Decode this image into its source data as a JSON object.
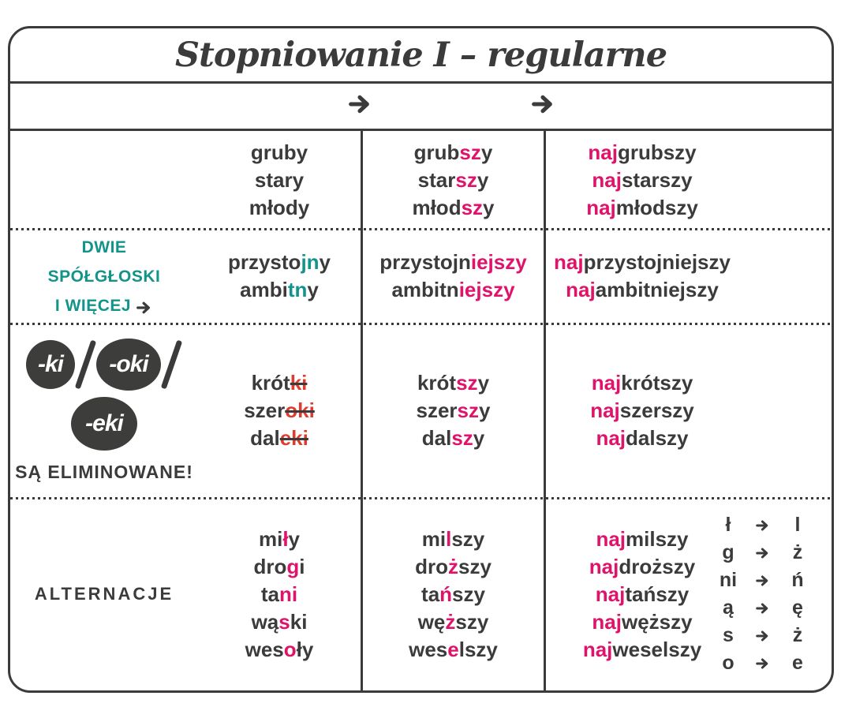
{
  "title": "Stopniowanie I – regularne",
  "colors": {
    "dark": "#3b3b3b",
    "pink": "#e0136b",
    "teal": "#13948b",
    "red": "#e03c2d",
    "circle_bg": "#3d3d3c"
  },
  "arrow_row": {
    "icons": [
      "right-arrow",
      "right-arrow"
    ]
  },
  "rows": [
    {
      "name": "basic",
      "label": {
        "type": "none"
      },
      "positive": [
        [
          [
            "gruby",
            "d"
          ]
        ],
        [
          [
            "stary",
            "d"
          ]
        ],
        [
          [
            "młody",
            "d"
          ]
        ]
      ],
      "comparative": [
        [
          [
            "grub",
            "d"
          ],
          [
            "sz",
            "p"
          ],
          [
            "y",
            "d"
          ]
        ],
        [
          [
            "star",
            "d"
          ],
          [
            "sz",
            "p"
          ],
          [
            "y",
            "d"
          ]
        ],
        [
          [
            "młod",
            "d"
          ],
          [
            "sz",
            "p"
          ],
          [
            "y",
            "d"
          ]
        ]
      ],
      "superlative": [
        [
          [
            "naj",
            "p"
          ],
          [
            "grubszy",
            "d"
          ]
        ],
        [
          [
            "naj",
            "p"
          ],
          [
            "starszy",
            "d"
          ]
        ],
        [
          [
            "naj",
            "p"
          ],
          [
            "młodszy",
            "d"
          ]
        ]
      ]
    },
    {
      "name": "two-consonants",
      "label": {
        "type": "teal-text",
        "lines": [
          "DWIE",
          "SPÓŁGŁOSKI",
          "I WIĘCEJ"
        ],
        "arrow_after_last": true
      },
      "positive": [
        [
          [
            "przysto",
            "d"
          ],
          [
            "jn",
            "t"
          ],
          [
            "y",
            "d"
          ]
        ],
        [
          [
            "ambi",
            "d"
          ],
          [
            "tn",
            "t"
          ],
          [
            "y",
            "d"
          ]
        ]
      ],
      "comparative": [
        [
          [
            "przystojn",
            "d"
          ],
          [
            "iejszy",
            "p"
          ]
        ],
        [
          [
            "ambitn",
            "d"
          ],
          [
            "iejszy",
            "p"
          ]
        ]
      ],
      "superlative": [
        [
          [
            "naj",
            "p"
          ],
          [
            "przystojniejszy",
            "d"
          ]
        ],
        [
          [
            "naj",
            "p"
          ],
          [
            "ambitniejszy",
            "d"
          ]
        ]
      ]
    },
    {
      "name": "ki-oki-eki-elimination",
      "label": {
        "type": "circles",
        "circles": [
          "-ki",
          "-oki",
          "-eki"
        ],
        "note": "SĄ ELIMINOWANE!"
      },
      "positive": [
        [
          [
            "krót",
            "d"
          ],
          [
            "ki",
            "r"
          ]
        ],
        [
          [
            "szer",
            "d"
          ],
          [
            "oki",
            "r"
          ]
        ],
        [
          [
            "dal",
            "d"
          ],
          [
            "eki",
            "r"
          ]
        ]
      ],
      "comparative": [
        [
          [
            "krót",
            "d"
          ],
          [
            "sz",
            "p"
          ],
          [
            "y",
            "d"
          ]
        ],
        [
          [
            "szer",
            "d"
          ],
          [
            "sz",
            "p"
          ],
          [
            "y",
            "d"
          ]
        ],
        [
          [
            "dal",
            "d"
          ],
          [
            "sz",
            "p"
          ],
          [
            "y",
            "d"
          ]
        ]
      ],
      "superlative": [
        [
          [
            "naj",
            "p"
          ],
          [
            "krótszy",
            "d"
          ]
        ],
        [
          [
            "naj",
            "p"
          ],
          [
            "szerszy",
            "d"
          ]
        ],
        [
          [
            "naj",
            "p"
          ],
          [
            "dalszy",
            "d"
          ]
        ]
      ]
    },
    {
      "name": "alternations",
      "label": {
        "type": "dark-text",
        "lines": [
          "ALTERNACJE"
        ]
      },
      "positive": [
        [
          [
            "mi",
            "d"
          ],
          [
            "ł",
            "p"
          ],
          [
            "y",
            "d"
          ]
        ],
        [
          [
            "dro",
            "d"
          ],
          [
            "g",
            "p"
          ],
          [
            "i",
            "d"
          ]
        ],
        [
          [
            "ta",
            "d"
          ],
          [
            "ni",
            "p"
          ]
        ],
        [
          [
            "wą",
            "d"
          ],
          [
            "s",
            "p"
          ],
          [
            "ki",
            "d"
          ]
        ],
        [
          [
            "wes",
            "d"
          ],
          [
            "o",
            "p"
          ],
          [
            "ły",
            "d"
          ]
        ]
      ],
      "comparative": [
        [
          [
            "mi",
            "d"
          ],
          [
            "l",
            "p"
          ],
          [
            "szy",
            "d"
          ]
        ],
        [
          [
            "dro",
            "d"
          ],
          [
            "ż",
            "p"
          ],
          [
            "szy",
            "d"
          ]
        ],
        [
          [
            "ta",
            "d"
          ],
          [
            "ń",
            "p"
          ],
          [
            "szy",
            "d"
          ]
        ],
        [
          [
            "wę",
            "d"
          ],
          [
            "ż",
            "p"
          ],
          [
            "szy",
            "d"
          ]
        ],
        [
          [
            "wes",
            "d"
          ],
          [
            "e",
            "p"
          ],
          [
            "lszy",
            "d"
          ]
        ]
      ],
      "superlative": [
        [
          [
            "naj",
            "p"
          ],
          [
            "milszy",
            "d"
          ]
        ],
        [
          [
            "naj",
            "p"
          ],
          [
            "droższy",
            "d"
          ]
        ],
        [
          [
            "naj",
            "p"
          ],
          [
            "tańszy",
            "d"
          ]
        ],
        [
          [
            "naj",
            "p"
          ],
          [
            "węższy",
            "d"
          ]
        ],
        [
          [
            "naj",
            "p"
          ],
          [
            "weselszy",
            "d"
          ]
        ]
      ],
      "alternations": [
        {
          "from": "ł",
          "to": "l"
        },
        {
          "from": "g",
          "to": "ż"
        },
        {
          "from": "ni",
          "to": "ń"
        },
        {
          "from": "ą",
          "to": "ę"
        },
        {
          "from": "s",
          "to": "ż"
        },
        {
          "from": "o",
          "to": "e"
        }
      ]
    }
  ]
}
